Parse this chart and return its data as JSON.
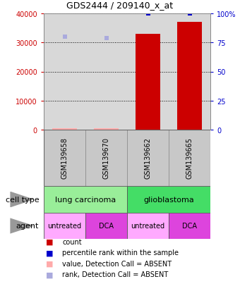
{
  "title": "GDS2444 / 209140_x_at",
  "samples": [
    "GSM139658",
    "GSM139670",
    "GSM139662",
    "GSM139665"
  ],
  "bar_values": [
    500,
    600,
    33000,
    37000
  ],
  "bar_absent": [
    true,
    true,
    false,
    false
  ],
  "rank_dot_values": [
    32000,
    31500,
    null,
    null
  ],
  "percentile_dot_values": [
    null,
    null,
    40000,
    40000
  ],
  "ylim_left": [
    0,
    40000
  ],
  "ylim_right": [
    0,
    100
  ],
  "yticks_left": [
    0,
    10000,
    20000,
    30000,
    40000
  ],
  "yticks_right": [
    0,
    25,
    50,
    75,
    100
  ],
  "ytick_labels_left": [
    "0",
    "10000",
    "20000",
    "30000",
    "40000"
  ],
  "ytick_labels_right": [
    "0",
    "25",
    "50",
    "75",
    "100%"
  ],
  "agents": [
    "untreated",
    "DCA",
    "untreated",
    "DCA"
  ],
  "bar_color": "#cc0000",
  "bar_absent_color": "#ffaaaa",
  "percentile_color": "#0000cc",
  "rank_dot_color": "#aaaadd",
  "bg_color": "#ffffff",
  "plot_bg_color": "#d8d8d8",
  "grid_color": "#000000",
  "bar_width": 0.6,
  "lung_color": "#99ee99",
  "glio_color": "#44dd66",
  "agent_light_color": "#ffaaff",
  "agent_dark_color": "#dd44dd",
  "sample_box_color": "#c8c8c8",
  "legend_items": [
    {
      "color": "#cc0000",
      "label": "count"
    },
    {
      "color": "#0000cc",
      "label": "percentile rank within the sample"
    },
    {
      "color": "#ffaaaa",
      "label": "value, Detection Call = ABSENT"
    },
    {
      "color": "#aaaadd",
      "label": "rank, Detection Call = ABSENT"
    }
  ]
}
